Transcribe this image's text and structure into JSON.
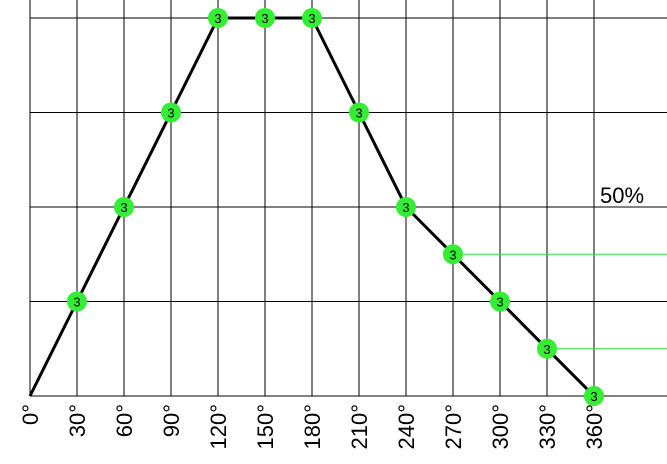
{
  "chart_data": {
    "type": "line",
    "title": "",
    "xlabel": "",
    "ylabel": "",
    "x_ticks": [
      "0°",
      "30°",
      "60°",
      "90°",
      "120°",
      "150°",
      "180°",
      "210°",
      "240°",
      "270°",
      "300°",
      "330°",
      "360°"
    ],
    "xlim": [
      0,
      380
    ],
    "ylim": [
      0,
      4
    ],
    "grid": true,
    "points": [
      {
        "x": 0,
        "y": 0,
        "label": ""
      },
      {
        "x": 30,
        "y": 1,
        "label": "3"
      },
      {
        "x": 60,
        "y": 2,
        "label": "3"
      },
      {
        "x": 90,
        "y": 3,
        "label": "3"
      },
      {
        "x": 120,
        "y": 4,
        "label": "3"
      },
      {
        "x": 150,
        "y": 4,
        "label": "3"
      },
      {
        "x": 180,
        "y": 4,
        "label": "3"
      },
      {
        "x": 210,
        "y": 3,
        "label": "3"
      },
      {
        "x": 240,
        "y": 2,
        "label": "3"
      },
      {
        "x": 270,
        "y": 1.5,
        "label": "3"
      },
      {
        "x": 300,
        "y": 1,
        "label": "3"
      },
      {
        "x": 330,
        "y": 0.5,
        "label": "3"
      },
      {
        "x": 360,
        "y": 0,
        "label": "3"
      }
    ],
    "reference_lines": [
      {
        "y": 1.5,
        "from_x": 270
      },
      {
        "y": 0.5,
        "from_x": 330
      }
    ],
    "annotation": "50%",
    "colors": {
      "line": "#000000",
      "marker": "#33ee33",
      "reference": "#33dd33",
      "grid": "#000000"
    }
  }
}
